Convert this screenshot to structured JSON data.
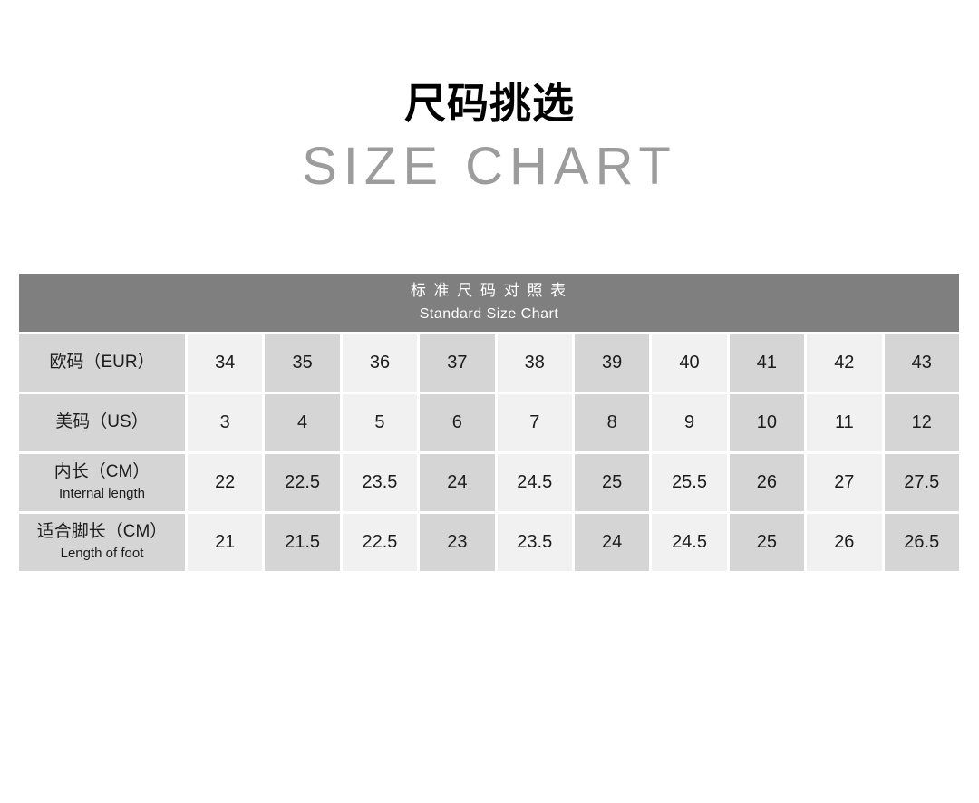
{
  "page": {
    "title": "尺码挑选",
    "subtitle": "SIZE CHART"
  },
  "table": {
    "header": {
      "title_cn": "标 准 尺 码 对 照 表",
      "title_en": "Standard Size Chart"
    },
    "rows": [
      {
        "label_cn": "欧码（EUR）",
        "label_en": "",
        "values": [
          "34",
          "35",
          "36",
          "37",
          "38",
          "39",
          "40",
          "41",
          "42",
          "43"
        ]
      },
      {
        "label_cn": "美码（US）",
        "label_en": "",
        "values": [
          "3",
          "4",
          "5",
          "6",
          "7",
          "8",
          "9",
          "10",
          "11",
          "12"
        ]
      },
      {
        "label_cn": "内长（CM）",
        "label_en": "Internal length",
        "values": [
          "22",
          "22.5",
          "23.5",
          "24",
          "24.5",
          "25",
          "25.5",
          "26",
          "27",
          "27.5"
        ]
      },
      {
        "label_cn": "适合脚长（CM）",
        "label_en": "Length of foot",
        "values": [
          "21",
          "21.5",
          "22.5",
          "23",
          "23.5",
          "24",
          "24.5",
          "25",
          "26",
          "26.5"
        ]
      }
    ]
  },
  "colors": {
    "header_bg": "#7f7f7f",
    "dark_cell": "#d5d5d5",
    "light_cell": "#f1f1f1",
    "cell_text": "#1c1c1c",
    "subtitle_color": "#9c9c9c",
    "title_color": "#000000"
  },
  "chart_data": {
    "type": "table",
    "title": "标准尺码对照表 / Standard Size Chart",
    "rows": [
      {
        "label": "欧码（EUR）",
        "values": [
          34,
          35,
          36,
          37,
          38,
          39,
          40,
          41,
          42,
          43
        ]
      },
      {
        "label": "美码（US）",
        "values": [
          3,
          4,
          5,
          6,
          7,
          8,
          9,
          10,
          11,
          12
        ]
      },
      {
        "label": "内长（CM）Internal length",
        "values": [
          22,
          22.5,
          23.5,
          24,
          24.5,
          25,
          25.5,
          26,
          27,
          27.5
        ]
      },
      {
        "label": "适合脚长（CM）Length of foot",
        "values": [
          21,
          21.5,
          22.5,
          23,
          23.5,
          24,
          24.5,
          25,
          26,
          26.5
        ]
      }
    ]
  }
}
